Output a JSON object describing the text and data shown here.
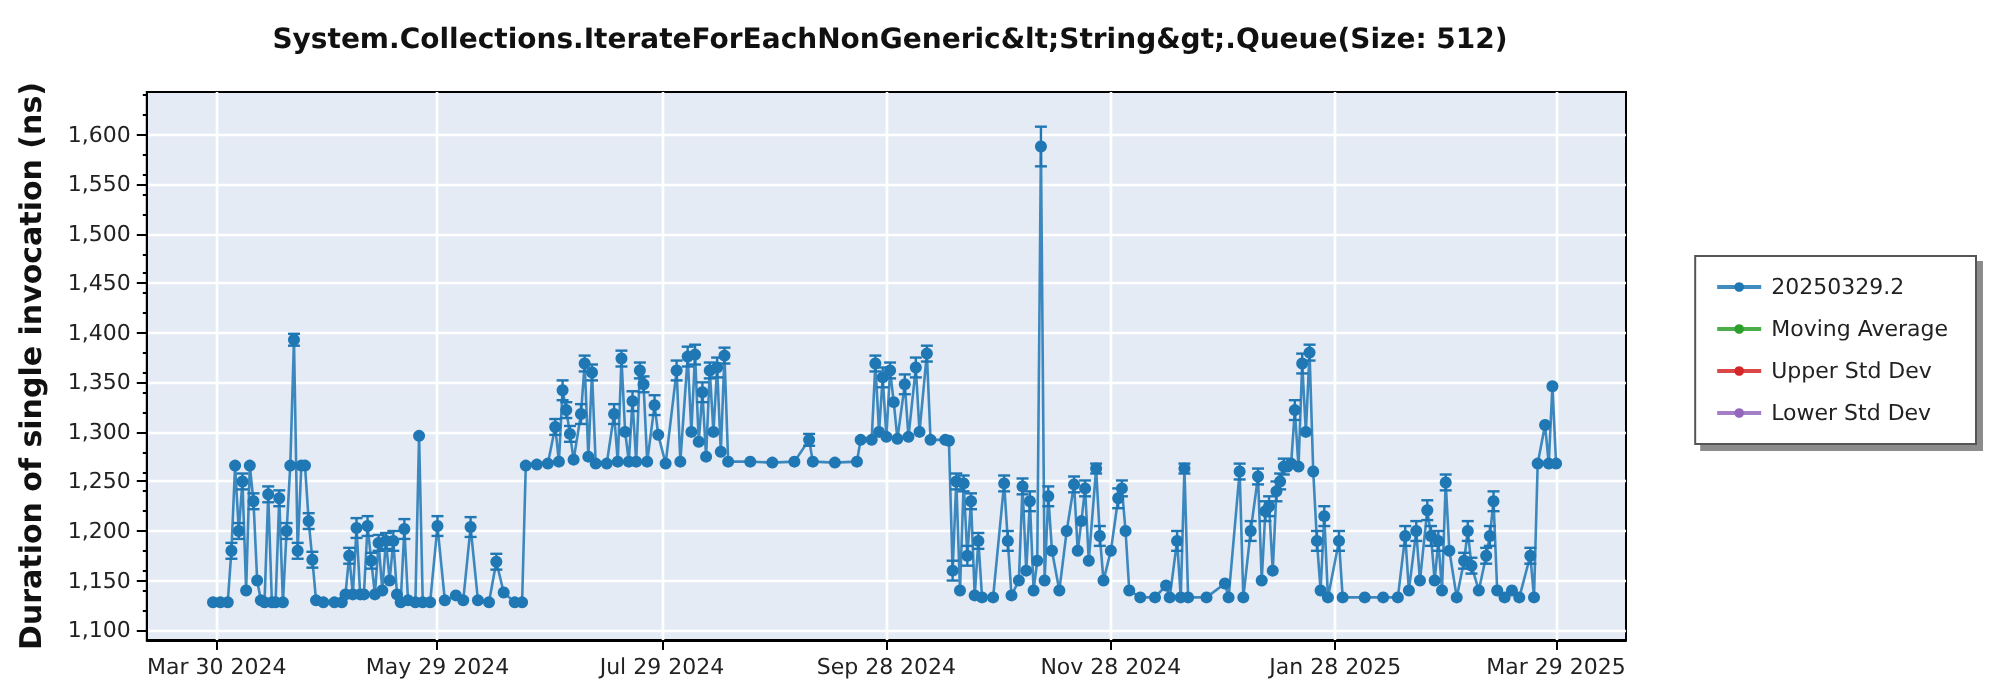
{
  "chart_data": {
    "type": "line",
    "title": "System.Collections.IterateForEachNonGeneric&lt;String&gt;.Queue(Size: 512)",
    "ylabel": "Duration of single invocation (ns)",
    "xlim": [
      "2024-03-11",
      "2025-04-17"
    ],
    "xticks": [
      {
        "value": "2024-03-30",
        "label": "Mar 30 2024"
      },
      {
        "value": "2024-05-29",
        "label": "May 29 2024"
      },
      {
        "value": "2024-07-29",
        "label": "Jul 29 2024"
      },
      {
        "value": "2024-09-28",
        "label": "Sep 28 2024"
      },
      {
        "value": "2024-11-28",
        "label": "Nov 28 2024"
      },
      {
        "value": "2025-01-28",
        "label": "Jan 28 2025"
      },
      {
        "value": "2025-03-29",
        "label": "Mar 29 2025"
      }
    ],
    "ylim": [
      1090,
      1643
    ],
    "yticks": [
      {
        "value": 1100,
        "label": "1,100"
      },
      {
        "value": 1150,
        "label": "1,150"
      },
      {
        "value": 1200,
        "label": "1,200"
      },
      {
        "value": 1250,
        "label": "1,250"
      },
      {
        "value": 1300,
        "label": "1,300"
      },
      {
        "value": 1350,
        "label": "1,350"
      },
      {
        "value": 1400,
        "label": "1,400"
      },
      {
        "value": 1450,
        "label": "1,450"
      },
      {
        "value": 1500,
        "label": "1,500"
      },
      {
        "value": 1550,
        "label": "1,550"
      },
      {
        "value": 1600,
        "label": "1,600"
      }
    ],
    "grid": true,
    "legend": "right",
    "marker": "circle",
    "line_style": "solid",
    "series": [
      {
        "name": "20250329.2",
        "color": "#1f77b4",
        "x": [
          "2024-03-29",
          "2024-03-31",
          "2024-04-02",
          "2024-04-03",
          "2024-04-04",
          "2024-04-05",
          "2024-04-06",
          "2024-04-07",
          "2024-04-08",
          "2024-04-09",
          "2024-04-10",
          "2024-04-11",
          "2024-04-12",
          "2024-04-13",
          "2024-04-14",
          "2024-04-15",
          "2024-04-16",
          "2024-04-17",
          "2024-04-18",
          "2024-04-19",
          "2024-04-20",
          "2024-04-21",
          "2024-04-22",
          "2024-04-23",
          "2024-04-24",
          "2024-04-25",
          "2024-04-26",
          "2024-04-28",
          "2024-05-01",
          "2024-05-03",
          "2024-05-04",
          "2024-05-05",
          "2024-05-06",
          "2024-05-07",
          "2024-05-08",
          "2024-05-09",
          "2024-05-10",
          "2024-05-11",
          "2024-05-12",
          "2024-05-13",
          "2024-05-14",
          "2024-05-15",
          "2024-05-16",
          "2024-05-17",
          "2024-05-18",
          "2024-05-19",
          "2024-05-20",
          "2024-05-21",
          "2024-05-23",
          "2024-05-24",
          "2024-05-25",
          "2024-05-27",
          "2024-05-29",
          "2024-05-31",
          "2024-06-03",
          "2024-06-05",
          "2024-06-07",
          "2024-06-09",
          "2024-06-12",
          "2024-06-14",
          "2024-06-16",
          "2024-06-19",
          "2024-06-21",
          "2024-06-22",
          "2024-06-25",
          "2024-06-28",
          "2024-06-30",
          "2024-07-01",
          "2024-07-02",
          "2024-07-03",
          "2024-07-04",
          "2024-07-05",
          "2024-07-07",
          "2024-07-08",
          "2024-07-09",
          "2024-07-10",
          "2024-07-11",
          "2024-07-14",
          "2024-07-16",
          "2024-07-17",
          "2024-07-18",
          "2024-07-19",
          "2024-07-20",
          "2024-07-21",
          "2024-07-22",
          "2024-07-23",
          "2024-07-24",
          "2024-07-25",
          "2024-07-27",
          "2024-07-28",
          "2024-07-30",
          "2024-08-02",
          "2024-08-03",
          "2024-08-05",
          "2024-08-06",
          "2024-08-07",
          "2024-08-08",
          "2024-08-09",
          "2024-08-10",
          "2024-08-11",
          "2024-08-12",
          "2024-08-13",
          "2024-08-14",
          "2024-08-15",
          "2024-08-16",
          "2024-08-22",
          "2024-08-28",
          "2024-09-03",
          "2024-09-07",
          "2024-09-08",
          "2024-09-14",
          "2024-09-20",
          "2024-09-21",
          "2024-09-24",
          "2024-09-25",
          "2024-09-26",
          "2024-09-27",
          "2024-09-28",
          "2024-09-29",
          "2024-09-30",
          "2024-10-01",
          "2024-10-03",
          "2024-10-04",
          "2024-10-06",
          "2024-10-07",
          "2024-10-09",
          "2024-10-10",
          "2024-10-14",
          "2024-10-15",
          "2024-10-16",
          "2024-10-17",
          "2024-10-18",
          "2024-10-19",
          "2024-10-20",
          "2024-10-21",
          "2024-10-22",
          "2024-10-23",
          "2024-10-24",
          "2024-10-27",
          "2024-10-30",
          "2024-10-31",
          "2024-11-01",
          "2024-11-03",
          "2024-11-04",
          "2024-11-05",
          "2024-11-06",
          "2024-11-07",
          "2024-11-08",
          "2024-11-09",
          "2024-11-10",
          "2024-11-11",
          "2024-11-12",
          "2024-11-14",
          "2024-11-16",
          "2024-11-18",
          "2024-11-19",
          "2024-11-20",
          "2024-11-21",
          "2024-11-22",
          "2024-11-24",
          "2024-11-25",
          "2024-11-26",
          "2024-11-28",
          "2024-11-30",
          "2024-12-01",
          "2024-12-02",
          "2024-12-03",
          "2024-12-06",
          "2024-12-10",
          "2024-12-13",
          "2024-12-14",
          "2024-12-16",
          "2024-12-17",
          "2024-12-18",
          "2024-12-19",
          "2024-12-24",
          "2024-12-29",
          "2024-12-30",
          "2025-01-02",
          "2025-01-03",
          "2025-01-05",
          "2025-01-07",
          "2025-01-08",
          "2025-01-09",
          "2025-01-10",
          "2025-01-11",
          "2025-01-12",
          "2025-01-13",
          "2025-01-14",
          "2025-01-15",
          "2025-01-16",
          "2025-01-17",
          "2025-01-18",
          "2025-01-19",
          "2025-01-20",
          "2025-01-21",
          "2025-01-22",
          "2025-01-23",
          "2025-01-24",
          "2025-01-25",
          "2025-01-26",
          "2025-01-29",
          "2025-01-30",
          "2025-02-05",
          "2025-02-10",
          "2025-02-14",
          "2025-02-16",
          "2025-02-17",
          "2025-02-19",
          "2025-02-20",
          "2025-02-22",
          "2025-02-23",
          "2025-02-24",
          "2025-02-25",
          "2025-02-26",
          "2025-02-27",
          "2025-02-28",
          "2025-03-02",
          "2025-03-04",
          "2025-03-05",
          "2025-03-06",
          "2025-03-08",
          "2025-03-10",
          "2025-03-11",
          "2025-03-12",
          "2025-03-13",
          "2025-03-15",
          "2025-03-17",
          "2025-03-19",
          "2025-03-22",
          "2025-03-23",
          "2025-03-24",
          "2025-03-26",
          "2025-03-27",
          "2025-03-28",
          "2025-03-29"
        ],
        "values": [
          1128,
          1128,
          1128,
          1180,
          1266,
          1200,
          1250,
          1140,
          1266,
          1230,
          1150,
          1130,
          1128,
          1237,
          1128,
          1128,
          1233,
          1128,
          1200,
          1266,
          1393,
          1180,
          1266,
          1266,
          1210,
          1171,
          1130,
          1128,
          1128,
          1128,
          1136,
          1175,
          1136,
          1203,
          1136,
          1136,
          1205,
          1170,
          1136,
          1188,
          1140,
          1190,
          1150,
          1190,
          1136,
          1128,
          1202,
          1130,
          1128,
          1296,
          1128,
          1128,
          1205,
          1130,
          1135,
          1130,
          1204,
          1130,
          1128,
          1169,
          1138,
          1128,
          1128,
          1266,
          1267,
          1268,
          1305,
          1270,
          1342,
          1322,
          1298,
          1272,
          1318,
          1369,
          1275,
          1360,
          1268,
          1268,
          1318,
          1270,
          1374,
          1300,
          1270,
          1331,
          1270,
          1362,
          1348,
          1270,
          1327,
          1297,
          1268,
          1362,
          1270,
          1376,
          1300,
          1378,
          1290,
          1340,
          1275,
          1362,
          1300,
          1365,
          1280,
          1377,
          1270,
          1270,
          1269,
          1270,
          1292,
          1270,
          1269,
          1270,
          1292,
          1292,
          1369,
          1300,
          1355,
          1295,
          1362,
          1330,
          1293,
          1348,
          1295,
          1365,
          1300,
          1379,
          1292,
          1292,
          1291,
          1160,
          1250,
          1140,
          1248,
          1175,
          1230,
          1135,
          1190,
          1133,
          1133,
          1248,
          1190,
          1135,
          1150,
          1245,
          1160,
          1230,
          1140,
          1170,
          1588,
          1150,
          1235,
          1180,
          1140,
          1200,
          1247,
          1180,
          1210,
          1243,
          1170,
          1263,
          1195,
          1150,
          1180,
          1233,
          1243,
          1200,
          1140,
          1133,
          1133,
          1145,
          1133,
          1190,
          1133,
          1263,
          1133,
          1133,
          1147,
          1133,
          1260,
          1133,
          1200,
          1255,
          1150,
          1220,
          1225,
          1160,
          1240,
          1250,
          1265,
          1265,
          1268,
          1322,
          1265,
          1369,
          1300,
          1380,
          1260,
          1190,
          1140,
          1215,
          1133,
          1190,
          1133,
          1133,
          1133,
          1133,
          1195,
          1140,
          1200,
          1150,
          1221,
          1195,
          1150,
          1190,
          1140,
          1249,
          1180,
          1133,
          1170,
          1200,
          1165,
          1140,
          1175,
          1195,
          1230,
          1140,
          1133,
          1140,
          1133,
          1175,
          1133,
          1268,
          1307,
          1268,
          1346,
          1268
        ],
        "errors": [
          null,
          null,
          null,
          8,
          null,
          8,
          8,
          null,
          null,
          8,
          null,
          null,
          null,
          8,
          null,
          null,
          8,
          null,
          8,
          null,
          6,
          8,
          null,
          null,
          8,
          8,
          null,
          null,
          null,
          null,
          null,
          8,
          null,
          10,
          null,
          null,
          10,
          8,
          null,
          8,
          null,
          8,
          null,
          10,
          null,
          null,
          10,
          null,
          null,
          null,
          null,
          null,
          10,
          null,
          null,
          null,
          10,
          null,
          null,
          8,
          null,
          null,
          null,
          null,
          null,
          null,
          8,
          null,
          10,
          8,
          8,
          null,
          10,
          8,
          null,
          8,
          null,
          null,
          10,
          null,
          8,
          null,
          null,
          10,
          null,
          8,
          8,
          null,
          10,
          null,
          null,
          10,
          null,
          10,
          null,
          10,
          null,
          10,
          null,
          8,
          null,
          10,
          null,
          8,
          null,
          null,
          null,
          null,
          6,
          null,
          null,
          null,
          null,
          null,
          8,
          null,
          10,
          null,
          8,
          null,
          null,
          10,
          null,
          10,
          null,
          8,
          null,
          null,
          null,
          10,
          8,
          null,
          8,
          10,
          8,
          null,
          8,
          null,
          null,
          8,
          10,
          null,
          null,
          8,
          null,
          10,
          null,
          null,
          20,
          null,
          10,
          null,
          null,
          null,
          8,
          null,
          null,
          8,
          null,
          5,
          10,
          null,
          null,
          10,
          8,
          null,
          null,
          null,
          null,
          null,
          null,
          10,
          null,
          5,
          null,
          null,
          null,
          null,
          8,
          null,
          10,
          8,
          null,
          10,
          10,
          null,
          10,
          8,
          8,
          null,
          null,
          10,
          null,
          10,
          null,
          8,
          null,
          10,
          null,
          10,
          null,
          10,
          null,
          null,
          null,
          null,
          10,
          null,
          10,
          null,
          10,
          10,
          null,
          10,
          null,
          8,
          null,
          null,
          8,
          10,
          8,
          null,
          8,
          10,
          10,
          null,
          null,
          null,
          null,
          8,
          null,
          null,
          null,
          null,
          null,
          null
        ]
      },
      {
        "name": "Moving Average",
        "color": "#2ca02c"
      },
      {
        "name": "Upper Std Dev",
        "color": "#d62728"
      },
      {
        "name": "Lower Std Dev",
        "color": "#9467bd"
      }
    ]
  }
}
